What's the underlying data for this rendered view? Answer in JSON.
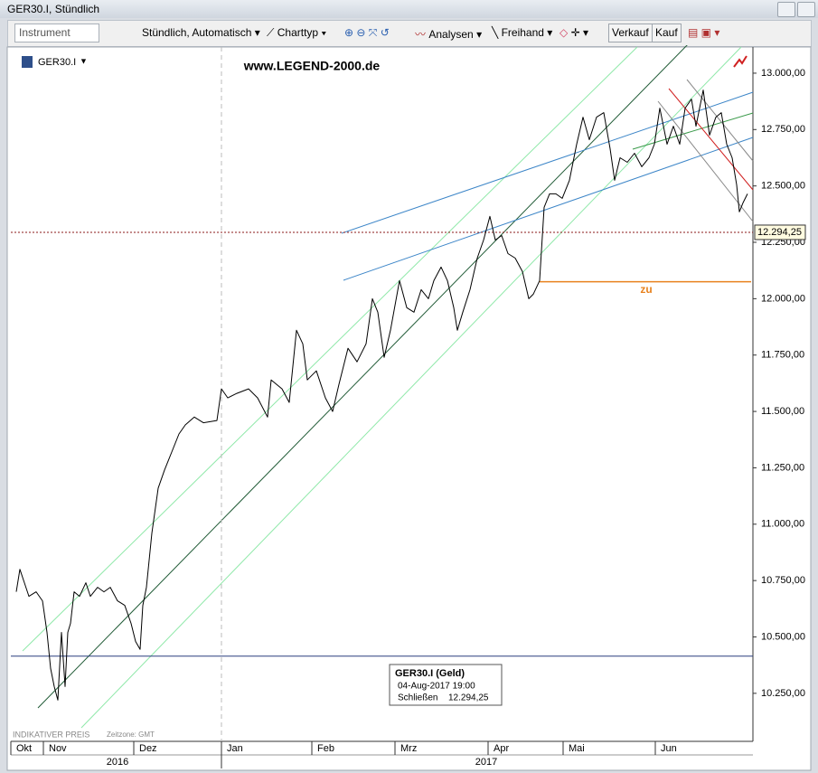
{
  "window": {
    "title": "GER30.I, Stündlich"
  },
  "toolbar": {
    "instrument": "Instrument",
    "timeframe": "Stündlich, Automatisch",
    "chart_type": "Charttyp",
    "analyses": "Analysen",
    "freehand": "Freihand",
    "sell": "Verkauf",
    "buy": "Kauf"
  },
  "chart_data": {
    "type": "line",
    "title": "www.LEGEND-2000.de",
    "x": [
      0.7,
      0.74,
      0.79,
      0.84,
      0.92,
      0.99,
      1.04,
      1.08,
      1.12,
      1.16,
      1.2,
      1.24,
      1.27,
      1.3,
      1.34,
      1.4,
      1.47,
      1.52,
      1.6,
      1.67,
      1.74,
      1.82,
      1.9,
      1.97,
      2.02,
      2.07,
      2.1,
      2.14,
      2.2,
      2.27,
      2.34,
      2.42,
      2.5,
      2.57,
      2.67,
      2.77,
      2.92,
      2.97,
      3.04,
      3.14,
      3.27,
      3.37,
      3.48,
      3.52,
      3.64,
      3.72,
      3.8,
      3.87,
      3.92,
      4.02,
      4.12,
      4.2,
      4.27,
      4.37,
      4.47,
      4.57,
      4.64,
      4.7,
      4.77,
      4.84,
      4.94,
      5.02,
      5.1,
      5.18,
      5.26,
      5.32,
      5.4,
      5.47,
      5.54,
      5.58,
      5.64,
      5.72,
      5.8,
      5.87,
      5.94,
      6.0,
      6.07,
      6.14,
      6.22,
      6.3,
      6.37,
      6.42,
      6.49,
      6.54,
      6.6,
      6.67,
      6.74,
      6.82,
      6.9,
      6.97,
      7.04,
      7.12,
      7.2,
      7.27,
      7.32,
      7.38,
      7.46,
      7.54,
      7.62,
      7.7,
      7.76,
      7.82,
      7.9,
      7.97,
      8.04,
      8.1,
      8.17,
      8.22,
      8.3,
      8.37,
      8.44,
      8.5,
      8.56,
      8.62,
      8.67,
      8.7,
      8.74,
      8.79
    ],
    "series": [
      {
        "name": "GER30.I",
        "color": "#000000",
        "values": [
          10700,
          10800,
          10740,
          10680,
          10700,
          10660,
          10520,
          10360,
          10280,
          10220,
          10520,
          10280,
          10520,
          10560,
          10700,
          10680,
          10740,
          10680,
          10720,
          10700,
          10720,
          10660,
          10640,
          10560,
          10480,
          10445,
          10640,
          10720,
          10960,
          11160,
          11240,
          11320,
          11400,
          11440,
          11475,
          11450,
          11460,
          11600,
          11560,
          11580,
          11600,
          11560,
          11475,
          11640,
          11600,
          11540,
          11860,
          11800,
          11640,
          11680,
          11560,
          11500,
          11620,
          11780,
          11720,
          11800,
          12000,
          11940,
          11740,
          11860,
          12080,
          11960,
          11940,
          12040,
          12000,
          12080,
          12140,
          12080,
          11960,
          11860,
          11940,
          12040,
          12180,
          12260,
          12365,
          12260,
          12280,
          12200,
          12180,
          12120,
          12000,
          12020,
          12080,
          12405,
          12465,
          12465,
          12445,
          12525,
          12685,
          12805,
          12705,
          12805,
          12825,
          12665,
          12525,
          12625,
          12605,
          12645,
          12585,
          12625,
          12685,
          12845,
          12685,
          12765,
          12685,
          12845,
          12885,
          12765,
          12925,
          12725,
          12805,
          12825,
          12685,
          12625,
          12505,
          12385,
          12425,
          12465
        ]
      }
    ],
    "xlim": [
      0.64,
      8.85
    ],
    "xticks": [
      {
        "value": 0.64,
        "label": "Okt"
      },
      {
        "value": 1.0,
        "label": "Nov"
      },
      {
        "value": 2.0,
        "label": "Dez"
      },
      {
        "value": 2.97,
        "label": "Jan"
      },
      {
        "value": 3.97,
        "label": "Feb"
      },
      {
        "value": 4.89,
        "label": "Mrz"
      },
      {
        "value": 5.92,
        "label": "Apr"
      },
      {
        "value": 6.75,
        "label": "Mai"
      },
      {
        "value": 7.77,
        "label": "Jun"
      }
    ],
    "years": [
      "2016",
      "2017"
    ],
    "ylim": [
      10037,
      13116
    ],
    "yticks": [
      {
        "value": 10250,
        "label": "10.250,00"
      },
      {
        "value": 10500,
        "label": "10.500,00"
      },
      {
        "value": 10750,
        "label": "10.750,00"
      },
      {
        "value": 11000,
        "label": "11.000,00"
      },
      {
        "value": 11250,
        "label": "11.250,00"
      },
      {
        "value": 11500,
        "label": "11.500,00"
      },
      {
        "value": 11750,
        "label": "11.750,00"
      },
      {
        "value": 12000,
        "label": "12.000,00"
      },
      {
        "value": 12250,
        "label": "12.250,00"
      },
      {
        "value": 12500,
        "label": "12.500,00"
      },
      {
        "value": 12750,
        "label": "12.750,00"
      },
      {
        "value": 13000,
        "label": "13.000,00"
      }
    ],
    "last_price": {
      "value": 12294.25,
      "label": "12.294,25",
      "color": "#8b1a1a"
    },
    "annotations": [
      {
        "label": "zu",
        "value": 12075,
        "x_start": 6.49,
        "color": "#e8821e"
      }
    ],
    "levels": [
      {
        "value": 10415,
        "color": "#2a3f7e"
      }
    ],
    "tooltip": {
      "title": "GER30.I (Geld)",
      "date": "04-Aug-2017 19:00",
      "field": "Schließen"
    },
    "footer": {
      "price_note": "INDIKATIVER PREIS",
      "timezone": "Zeitzone: GMT"
    }
  }
}
